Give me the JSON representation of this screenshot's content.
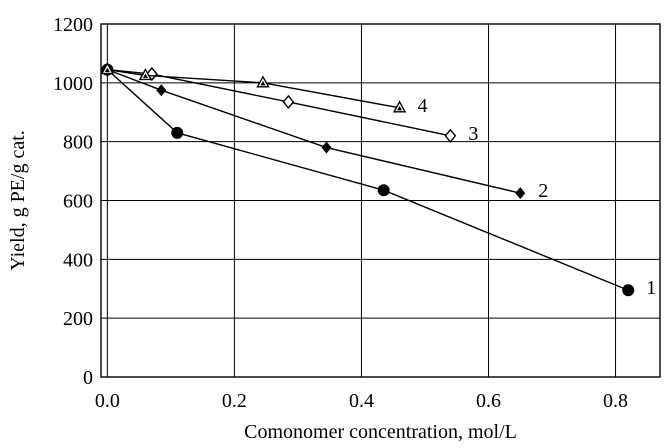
{
  "chart_data": {
    "type": "line",
    "xlabel": "Comonomer concentration, mol/L",
    "ylabel": "Yield, g PE/g cat.",
    "xlim": [
      -0.01,
      0.87
    ],
    "ylim": [
      0,
      1200
    ],
    "x_ticks": [
      "0.0",
      "0.2",
      "0.4",
      "0.6",
      "0.8"
    ],
    "x_tick_values": [
      0.0,
      0.2,
      0.4,
      0.6,
      0.8
    ],
    "y_ticks": [
      "0",
      "200",
      "400",
      "600",
      "800",
      "1000",
      "1200"
    ],
    "y_tick_values": [
      0,
      200,
      400,
      600,
      800,
      1000,
      1200
    ],
    "grid": true,
    "series": [
      {
        "name": "1",
        "marker": "filled-circle",
        "x": [
          0.0,
          0.11,
          0.435,
          0.82
        ],
        "y": [
          1045,
          830,
          635,
          295
        ]
      },
      {
        "name": "2",
        "marker": "filled-diamond",
        "x": [
          0.0,
          0.085,
          0.345,
          0.65
        ],
        "y": [
          1045,
          975,
          780,
          625
        ]
      },
      {
        "name": "3",
        "marker": "open-diamond",
        "x": [
          0.0,
          0.07,
          0.285,
          0.54
        ],
        "y": [
          1045,
          1030,
          935,
          820
        ]
      },
      {
        "name": "4",
        "marker": "open-triangle",
        "x": [
          0.0,
          0.06,
          0.245,
          0.46
        ],
        "y": [
          1045,
          1025,
          1000,
          915
        ]
      }
    ]
  }
}
